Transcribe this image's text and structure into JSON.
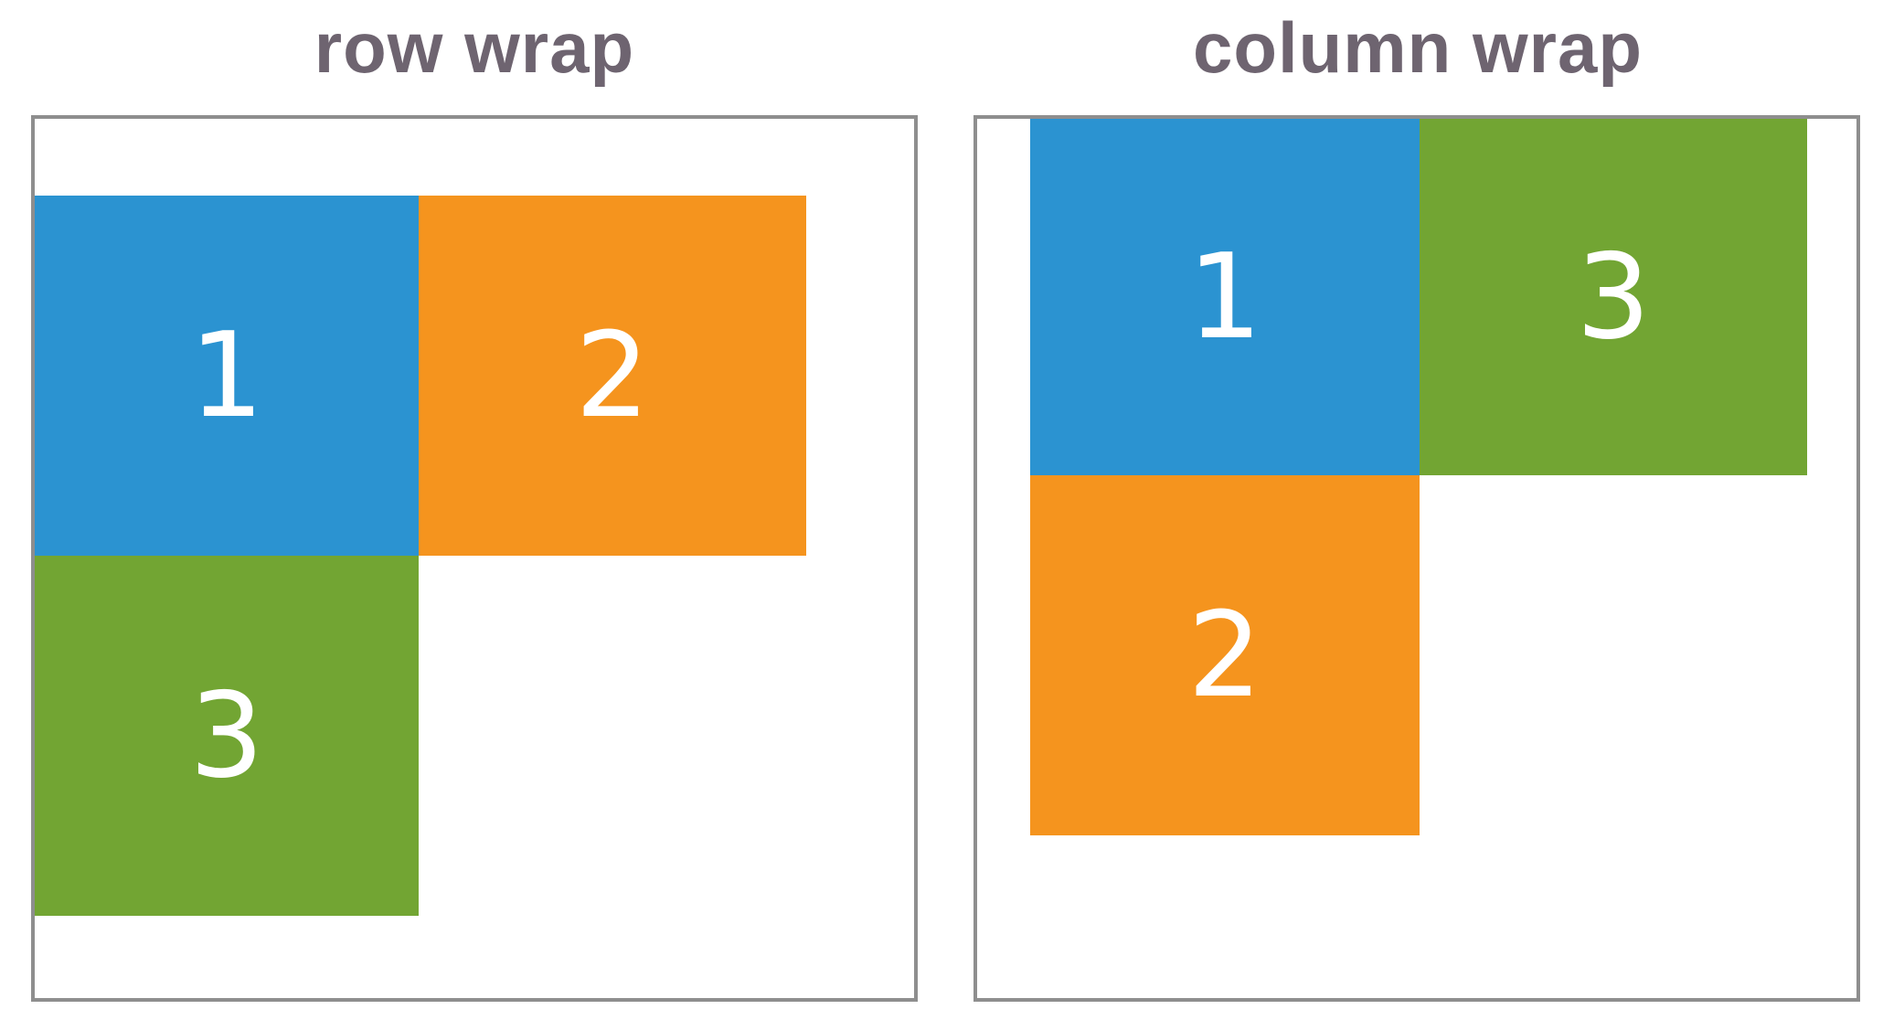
{
  "colors": {
    "title": "#6e6470",
    "frame_border": "#8e8e8e",
    "blue": "#2b93d1",
    "orange": "#f5941e",
    "green": "#72a533"
  },
  "row_panel": {
    "title": "row wrap",
    "items": [
      {
        "label": "1",
        "color": "blue"
      },
      {
        "label": "2",
        "color": "orange"
      },
      {
        "label": "3",
        "color": "green"
      }
    ]
  },
  "column_panel": {
    "title": "column wrap",
    "items": [
      {
        "label": "1",
        "color": "blue"
      },
      {
        "label": "2",
        "color": "orange"
      },
      {
        "label": "3",
        "color": "green"
      }
    ]
  }
}
